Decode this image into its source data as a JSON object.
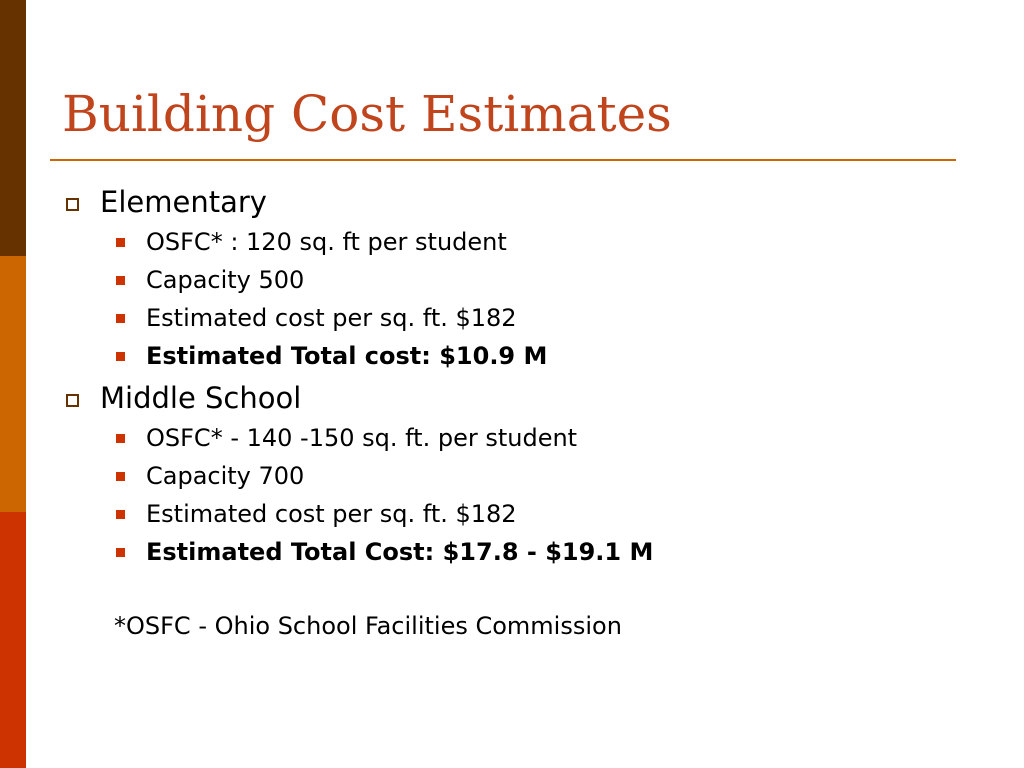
{
  "slide": {
    "title": "Building Cost Estimates",
    "colors": {
      "stripe_top": "#663300",
      "stripe_middle": "#cc6600",
      "stripe_bottom": "#cc3300",
      "title": "#c0441c",
      "rule": "#cc6600",
      "sub_bullet": "#cc3300",
      "main_bullet_border": "#663300"
    },
    "sections": [
      {
        "heading": "Elementary",
        "items": [
          "OSFC* : 120 sq. ft per student",
          "Capacity 500",
          "Estimated cost per sq. ft. $182",
          "Estimated Total cost: $10.9 M"
        ]
      },
      {
        "heading": "Middle School",
        "items": [
          "OSFC* - 140 -150 sq. ft. per student",
          "Capacity 700",
          "Estimated cost per sq. ft. $182",
          "Estimated Total Cost: $17.8 - $19.1 M"
        ]
      }
    ],
    "footnote": "*OSFC - Ohio School Facilities Commission"
  }
}
